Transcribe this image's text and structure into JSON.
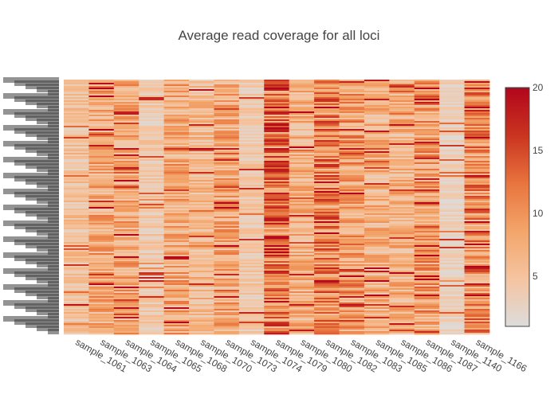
{
  "chart_data": {
    "type": "heatmap",
    "title": "Average read coverage for all loci",
    "xlabel": "",
    "ylabel": "",
    "x_categories": [
      "sample_1061",
      "sample_1063",
      "sample_1064",
      "sample_1065",
      "sample_1068",
      "sample_1070",
      "sample_1073",
      "sample_1074",
      "sample_1079",
      "sample_1080",
      "sample_1082",
      "sample_1083",
      "sample_1085",
      "sample_1086",
      "sample_1087",
      "sample_1140",
      "sample_1166"
    ],
    "column_mean_coverage": [
      5,
      8,
      8,
      4,
      8,
      6,
      8,
      4,
      12,
      7,
      11,
      9,
      7,
      7,
      9,
      3,
      10
    ],
    "row_count": 160,
    "colorscale": [
      "#dcdcdc",
      "#f5c4a0",
      "#f3a56a",
      "#e8743e",
      "#c9341f",
      "#b2061c"
    ],
    "colorbar": {
      "range": [
        1,
        20
      ],
      "ticks": [
        "5",
        "10",
        "15",
        "20"
      ],
      "tick_values": [
        5,
        10,
        15,
        20
      ]
    },
    "grid": false
  }
}
